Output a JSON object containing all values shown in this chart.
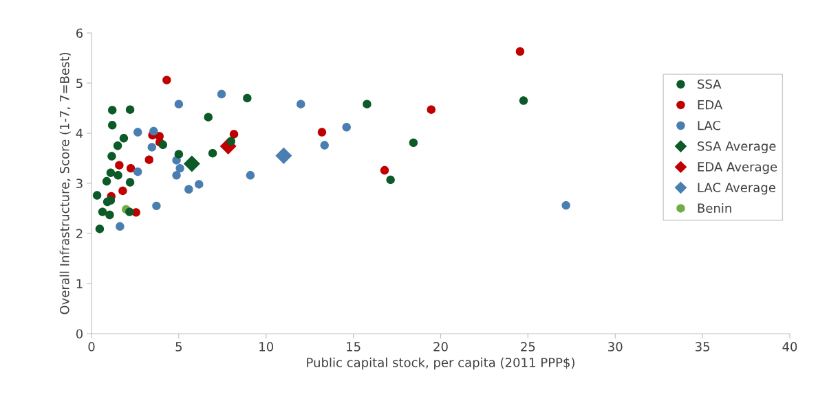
{
  "chart_data": {
    "type": "scatter",
    "xlabel": "Public capital stock, per capita (2011 PPP$)",
    "ylabel": "Overall Infrastructure, Score (1-7, 7=Best)",
    "xlim": [
      0,
      40
    ],
    "xticks": [
      0,
      5,
      10,
      15,
      20,
      25,
      30,
      35,
      40
    ],
    "ylim": [
      0,
      6
    ],
    "yticks": [
      0,
      1,
      2,
      3,
      4,
      5,
      6
    ],
    "grid": false,
    "legend": "right",
    "series": [
      {
        "name": "SSA",
        "color": "#0b5a27",
        "marker": "circle",
        "x": [
          1.19,
          2.21,
          1.19,
          1.85,
          1.5,
          1.16,
          4.09,
          6.69,
          8.92,
          5.0,
          6.94,
          7.99,
          1.1,
          1.52,
          0.87,
          2.21,
          0.32,
          1.1,
          0.91,
          0.63,
          1.04,
          2.18,
          0.47,
          15.78,
          24.75,
          18.44,
          17.13
        ],
        "values": [
          4.46,
          4.47,
          4.16,
          3.9,
          3.75,
          3.54,
          3.77,
          4.32,
          4.7,
          3.58,
          3.6,
          3.84,
          3.21,
          3.16,
          3.04,
          3.02,
          2.76,
          2.66,
          2.63,
          2.43,
          2.37,
          2.43,
          2.09,
          4.58,
          4.65,
          3.81,
          3.07
        ]
      },
      {
        "name": "EDA",
        "color": "#c00000",
        "marker": "circle",
        "x": [
          4.31,
          3.49,
          3.89,
          3.91,
          3.3,
          1.59,
          2.25,
          1.79,
          1.13,
          2.55,
          8.16,
          13.2,
          16.79,
          19.46,
          24.55
        ],
        "values": [
          5.06,
          3.96,
          3.94,
          3.82,
          3.47,
          3.36,
          3.3,
          2.85,
          2.74,
          2.42,
          3.98,
          4.02,
          3.26,
          4.47,
          5.63
        ]
      },
      {
        "name": "LAC",
        "color": "#4a7eb0",
        "marker": "circle",
        "x": [
          7.45,
          5.0,
          2.65,
          3.56,
          3.46,
          2.65,
          4.87,
          5.07,
          4.87,
          5.57,
          6.16,
          3.72,
          1.63,
          9.1,
          11.99,
          14.61,
          13.35,
          27.18
        ],
        "values": [
          4.78,
          4.58,
          4.02,
          4.04,
          3.72,
          3.23,
          3.46,
          3.3,
          3.16,
          2.88,
          2.98,
          2.55,
          2.14,
          3.16,
          4.58,
          4.12,
          3.76,
          2.56
        ]
      },
      {
        "name": "SSA Average",
        "color": "#0b5a27",
        "marker": "diamond",
        "x": [
          5.75
        ],
        "values": [
          3.39
        ]
      },
      {
        "name": "EDA Average",
        "color": "#c00000",
        "marker": "diamond",
        "x": [
          7.83
        ],
        "values": [
          3.74
        ]
      },
      {
        "name": "LAC Average",
        "color": "#4a7eb0",
        "marker": "diamond",
        "x": [
          11.01
        ],
        "values": [
          3.55
        ]
      },
      {
        "name": "Benin",
        "color": "#70ad47",
        "marker": "circle",
        "x": [
          1.98
        ],
        "values": [
          2.48
        ]
      }
    ]
  }
}
